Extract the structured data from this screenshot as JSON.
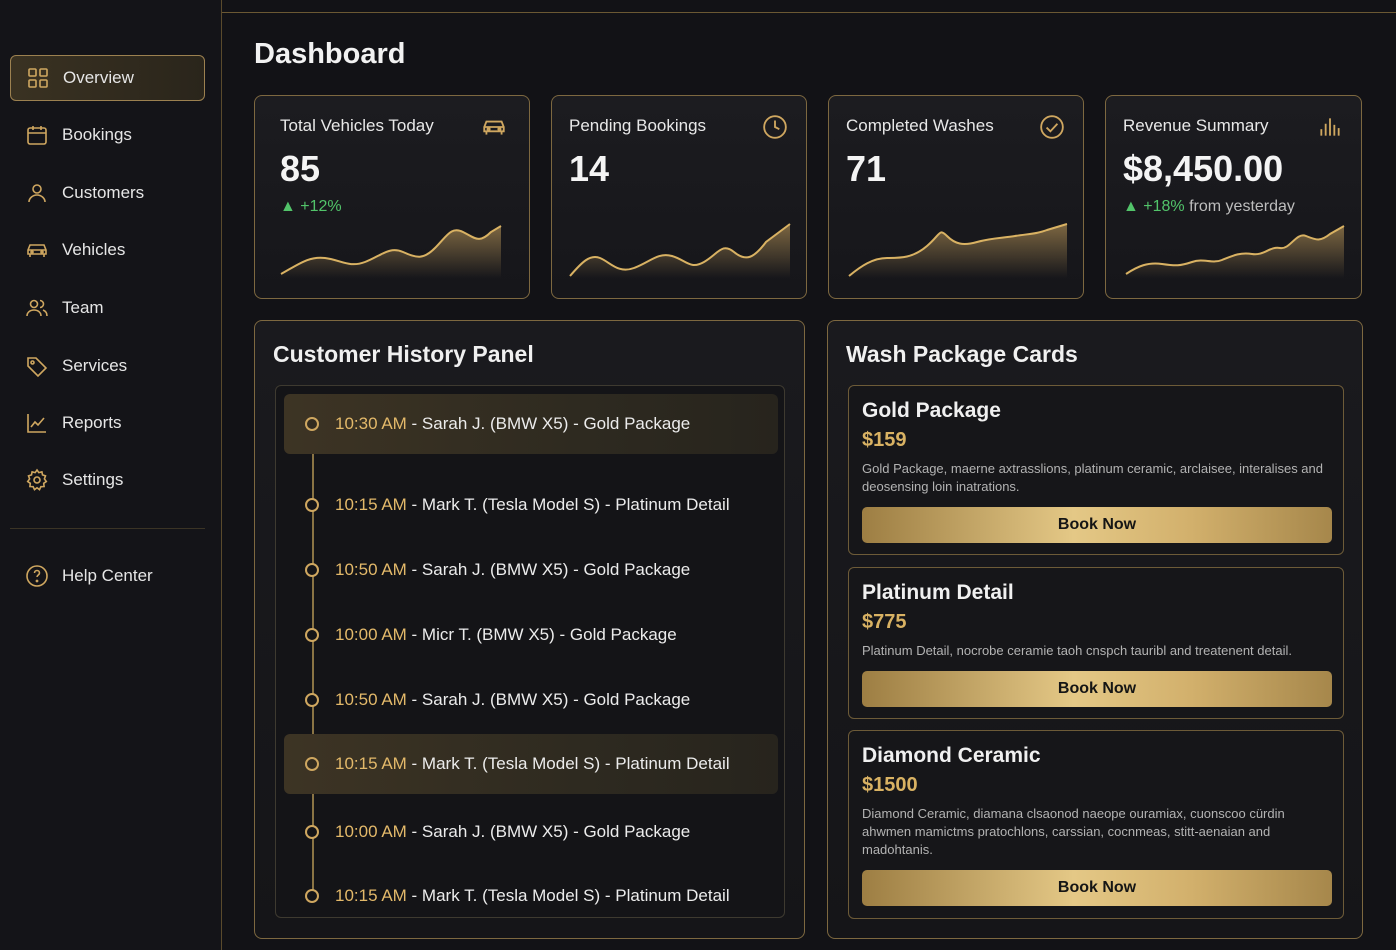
{
  "sidebar": {
    "items": [
      {
        "label": "Overview",
        "icon": "grid-icon",
        "active": true
      },
      {
        "label": "Bookings",
        "icon": "calendar-icon"
      },
      {
        "label": "Customers",
        "icon": "user-icon"
      },
      {
        "label": "Vehicles",
        "icon": "car-icon"
      },
      {
        "label": "Team",
        "icon": "users-icon"
      },
      {
        "label": "Services",
        "icon": "tag-icon"
      },
      {
        "label": "Reports",
        "icon": "chart-line-icon"
      },
      {
        "label": "Settings",
        "icon": "gear-icon"
      }
    ],
    "help": {
      "label": "Help Center",
      "icon": "help-circle-icon"
    }
  },
  "page": {
    "title": "Dashboard"
  },
  "stats": [
    {
      "label": "Total Vehicles Today",
      "value": "85",
      "change": "+12%",
      "change_rest": "",
      "icon": "car-icon"
    },
    {
      "label": "Pending Bookings",
      "value": "14",
      "change": "",
      "change_rest": "",
      "icon": "clock-icon"
    },
    {
      "label": "Completed Washes",
      "value": "71",
      "change": "",
      "change_rest": "",
      "icon": "check-circle-icon"
    },
    {
      "label": "Revenue Summary",
      "value": "$8,450.00",
      "change": "+18%",
      "change_rest": "from yesterday",
      "icon": "bar-chart-icon"
    }
  ],
  "history": {
    "title": "Customer History Panel",
    "items": [
      {
        "time": "10:30 AM",
        "text": " - Sarah J. (BMW X5) - Gold Package",
        "highlight": true
      },
      {
        "time": "10:15 AM",
        "text": " - Mark T. (Tesla Model S) - Platinum Detail",
        "highlight": false
      },
      {
        "time": "10:50 AM",
        "text": " - Sarah J. (BMW X5) - Gold Package",
        "highlight": false
      },
      {
        "time": "10:00 AM",
        "text": " - Micr T. (BMW X5) - Gold Package",
        "highlight": false
      },
      {
        "time": "10:50 AM",
        "text": " - Sarah J. (BMW X5) - Gold Package",
        "highlight": false
      },
      {
        "time": "10:15 AM",
        "text": " - Mark T. (Tesla Model S) - Platinum Detail",
        "highlight": true
      },
      {
        "time": "10:00 AM",
        "text": " - Sarah J. (BMW X5) - Gold Package",
        "highlight": false
      },
      {
        "time": "10:15 AM",
        "text": " - Mark T. (Tesla Model S) - Platinum Detail",
        "highlight": false
      }
    ]
  },
  "packages": {
    "title": "Wash Package Cards",
    "items": [
      {
        "name": "Gold Package",
        "price": "$159",
        "desc": "Gold Package, maerne axtrasslions, platinum ceramic, arclaisee, interalises and deosensing loin inatrations.",
        "button": "Book Now"
      },
      {
        "name": "Platinum Detail",
        "price": "$775",
        "desc": "Platinum Detail, nocrobe ceramie taoh cnspch tauribl and treatenent detail.",
        "button": "Book Now"
      },
      {
        "name": "Diamond Ceramic",
        "price": "$1500",
        "desc": "Diamond Ceramic, diamana clsaonod naeope ouramiax, cuonscoo cürdin ahwmen mamictms pratochlons, carssian, cocnmeas, stitt-aenaian and madohtanis.",
        "button": "Book Now"
      }
    ]
  },
  "colors": {
    "accent": "#cfa760",
    "border": "#7d6840",
    "positive": "#52c46a",
    "background": "#121216"
  }
}
